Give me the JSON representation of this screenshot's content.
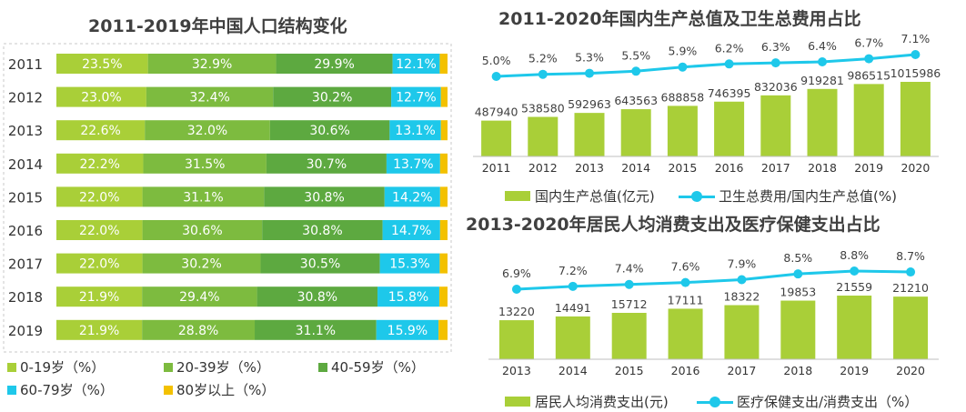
{
  "chart_data": [
    {
      "type": "bar",
      "orientation": "horizontal",
      "stacked": true,
      "normalized": true,
      "title": "2011-2019年中国人口结构变化",
      "categories": [
        "2011",
        "2012",
        "2013",
        "2014",
        "2015",
        "2016",
        "2017",
        "2018",
        "2019"
      ],
      "series": [
        {
          "name": "0-19岁（%）",
          "color": "#a9cf38",
          "values": [
            23.5,
            23.0,
            22.6,
            22.2,
            22.0,
            22.0,
            22.0,
            21.9,
            21.9
          ],
          "labels": [
            "23.5%",
            "23.0%",
            "22.6%",
            "22.2%",
            "22.0%",
            "22.0%",
            "22.0%",
            "21.9%",
            "21.9%"
          ]
        },
        {
          "name": "20-39岁（%）",
          "color": "#7dbb3f",
          "values": [
            32.9,
            32.4,
            32.0,
            31.5,
            31.1,
            30.6,
            30.2,
            29.4,
            28.8
          ],
          "labels": [
            "32.9%",
            "32.4%",
            "32.0%",
            "31.5%",
            "31.1%",
            "30.6%",
            "30.2%",
            "29.4%",
            "28.8%"
          ]
        },
        {
          "name": "40-59岁（%）",
          "color": "#5da940",
          "values": [
            29.9,
            30.2,
            30.6,
            30.7,
            30.8,
            30.8,
            30.5,
            30.8,
            31.1
          ],
          "labels": [
            "29.9%",
            "30.2%",
            "30.6%",
            "30.7%",
            "30.8%",
            "30.8%",
            "30.5%",
            "30.8%",
            "31.1%"
          ]
        },
        {
          "name": "60-79岁（%）",
          "color": "#1ec8ea",
          "values": [
            12.1,
            12.7,
            13.1,
            13.7,
            14.2,
            14.7,
            15.3,
            15.8,
            15.9
          ],
          "labels": [
            "12.1%",
            "12.7%",
            "13.1%",
            "13.7%",
            "14.2%",
            "14.7%",
            "15.3%",
            "15.8%",
            "15.9%"
          ]
        },
        {
          "name": "80岁以上（%）",
          "color": "#f3c100",
          "values": [
            2.0,
            1.7,
            1.7,
            1.9,
            1.9,
            1.9,
            2.0,
            2.1,
            2.3
          ]
        }
      ],
      "legend": "bottom"
    },
    {
      "type": "bar+line",
      "title": "2011-2020年国内生产总值及卫生总费用占比",
      "categories": [
        "2011",
        "2012",
        "2013",
        "2014",
        "2015",
        "2016",
        "2017",
        "2018",
        "2019",
        "2020"
      ],
      "series": [
        {
          "name": "国内生产总值(亿元)",
          "type": "bar",
          "color": "#a9cf38",
          "values": [
            487940,
            538580,
            592963,
            643563,
            688858,
            746395,
            832036,
            919281,
            986515,
            1015986
          ],
          "labels": [
            "487940",
            "538580",
            "592963",
            "643563",
            "688858",
            "746395",
            "832036",
            "919281",
            "986515",
            "1015986"
          ]
        },
        {
          "name": "卫生总费用/国内生产总值(%)",
          "type": "line",
          "color": "#1ec8ea",
          "values": [
            5.0,
            5.2,
            5.3,
            5.5,
            5.9,
            6.2,
            6.3,
            6.4,
            6.7,
            7.1
          ],
          "labels": [
            "5.0%",
            "5.2%",
            "5.3%",
            "5.5%",
            "5.9%",
            "6.2%",
            "6.3%",
            "6.4%",
            "6.7%",
            "7.1%"
          ]
        }
      ],
      "legend": "bottom"
    },
    {
      "type": "bar+line",
      "title": "2013-2020年居民人均消费支出及医疗保健支出占比",
      "categories": [
        "2013",
        "2014",
        "2015",
        "2016",
        "2017",
        "2018",
        "2019",
        "2020"
      ],
      "series": [
        {
          "name": "居民人均消费支出(元)",
          "type": "bar",
          "color": "#a9cf38",
          "values": [
            13220,
            14491,
            15712,
            17111,
            18322,
            19853,
            21559,
            21210
          ],
          "labels": [
            "13220",
            "14491",
            "15712",
            "17111",
            "18322",
            "19853",
            "21559",
            "21210"
          ]
        },
        {
          "name": "医疗保健支出/消费支出（%）",
          "type": "line",
          "color": "#1ec8ea",
          "values": [
            6.9,
            7.2,
            7.4,
            7.6,
            7.9,
            8.5,
            8.8,
            8.7
          ],
          "labels": [
            "6.9%",
            "7.2%",
            "7.4%",
            "7.6%",
            "7.9%",
            "8.5%",
            "8.8%",
            "8.7%"
          ]
        }
      ],
      "legend": "bottom"
    }
  ]
}
